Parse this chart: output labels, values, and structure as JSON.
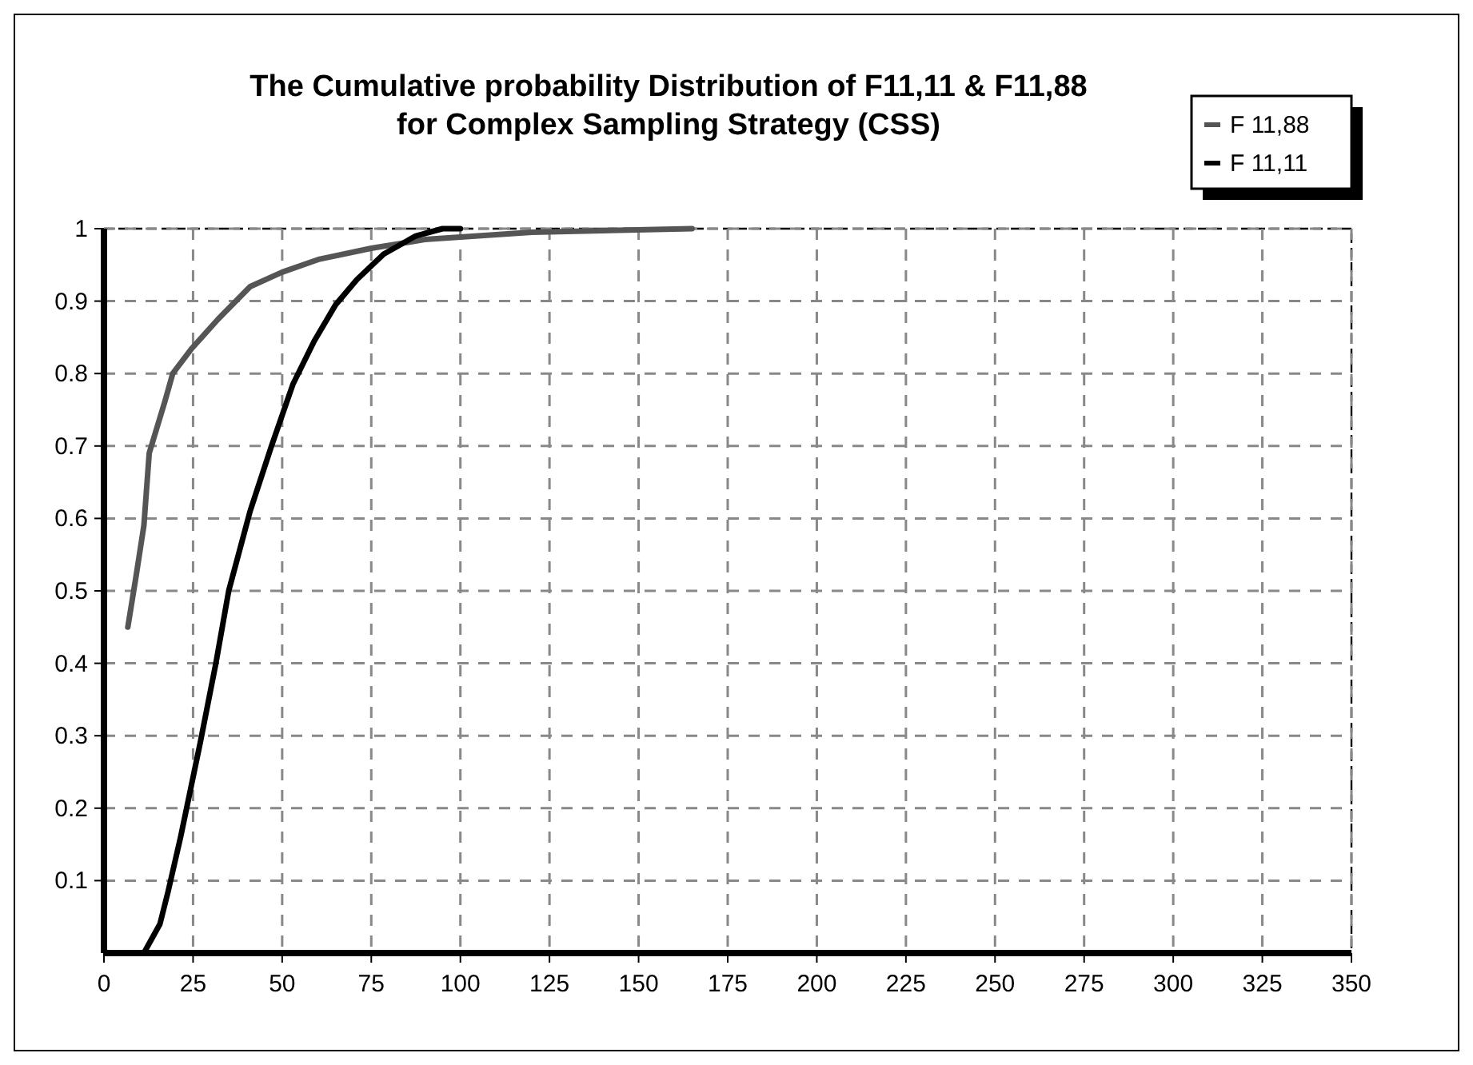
{
  "chart_data": {
    "type": "line",
    "title": "The Cumulative  probability Distribution of F11,11 & F11,88\nfor Complex Sampling Strategy (CSS)",
    "xlim": [
      0,
      350
    ],
    "xticks": [
      0,
      25,
      50,
      75,
      100,
      125,
      150,
      175,
      200,
      225,
      250,
      275,
      300,
      325,
      350
    ],
    "ylim": [
      0,
      1
    ],
    "yticks": [
      0.1,
      0.2,
      0.3,
      0.4,
      0.5,
      0.6,
      0.7,
      0.8,
      0.9,
      1
    ],
    "grid": true,
    "legend": "top right",
    "marker": "none",
    "line_style": "solid",
    "series": [
      {
        "name": "F 11,88",
        "color": "#555555",
        "x": [
          6.7,
          9,
          11.2,
          12.7,
          17,
          19.3,
          24.7,
          32,
          41,
          50,
          60.5,
          75,
          90,
          120,
          165
        ],
        "values": [
          0.45,
          0.52,
          0.59,
          0.69,
          0.76,
          0.8,
          0.835,
          0.875,
          0.92,
          0.94,
          0.958,
          0.973,
          0.985,
          0.995,
          1
        ]
      },
      {
        "name": "F 11,11",
        "color": "#000000",
        "x": [
          11.2,
          15.7,
          18,
          21.5,
          27,
          31.4,
          35,
          41,
          47,
          53,
          59,
          65,
          71,
          78.5,
          87.5,
          95,
          100
        ],
        "values": [
          0,
          0.04,
          0.085,
          0.16,
          0.29,
          0.4,
          0.5,
          0.61,
          0.7,
          0.785,
          0.845,
          0.895,
          0.93,
          0.965,
          0.99,
          1,
          1
        ]
      }
    ]
  }
}
